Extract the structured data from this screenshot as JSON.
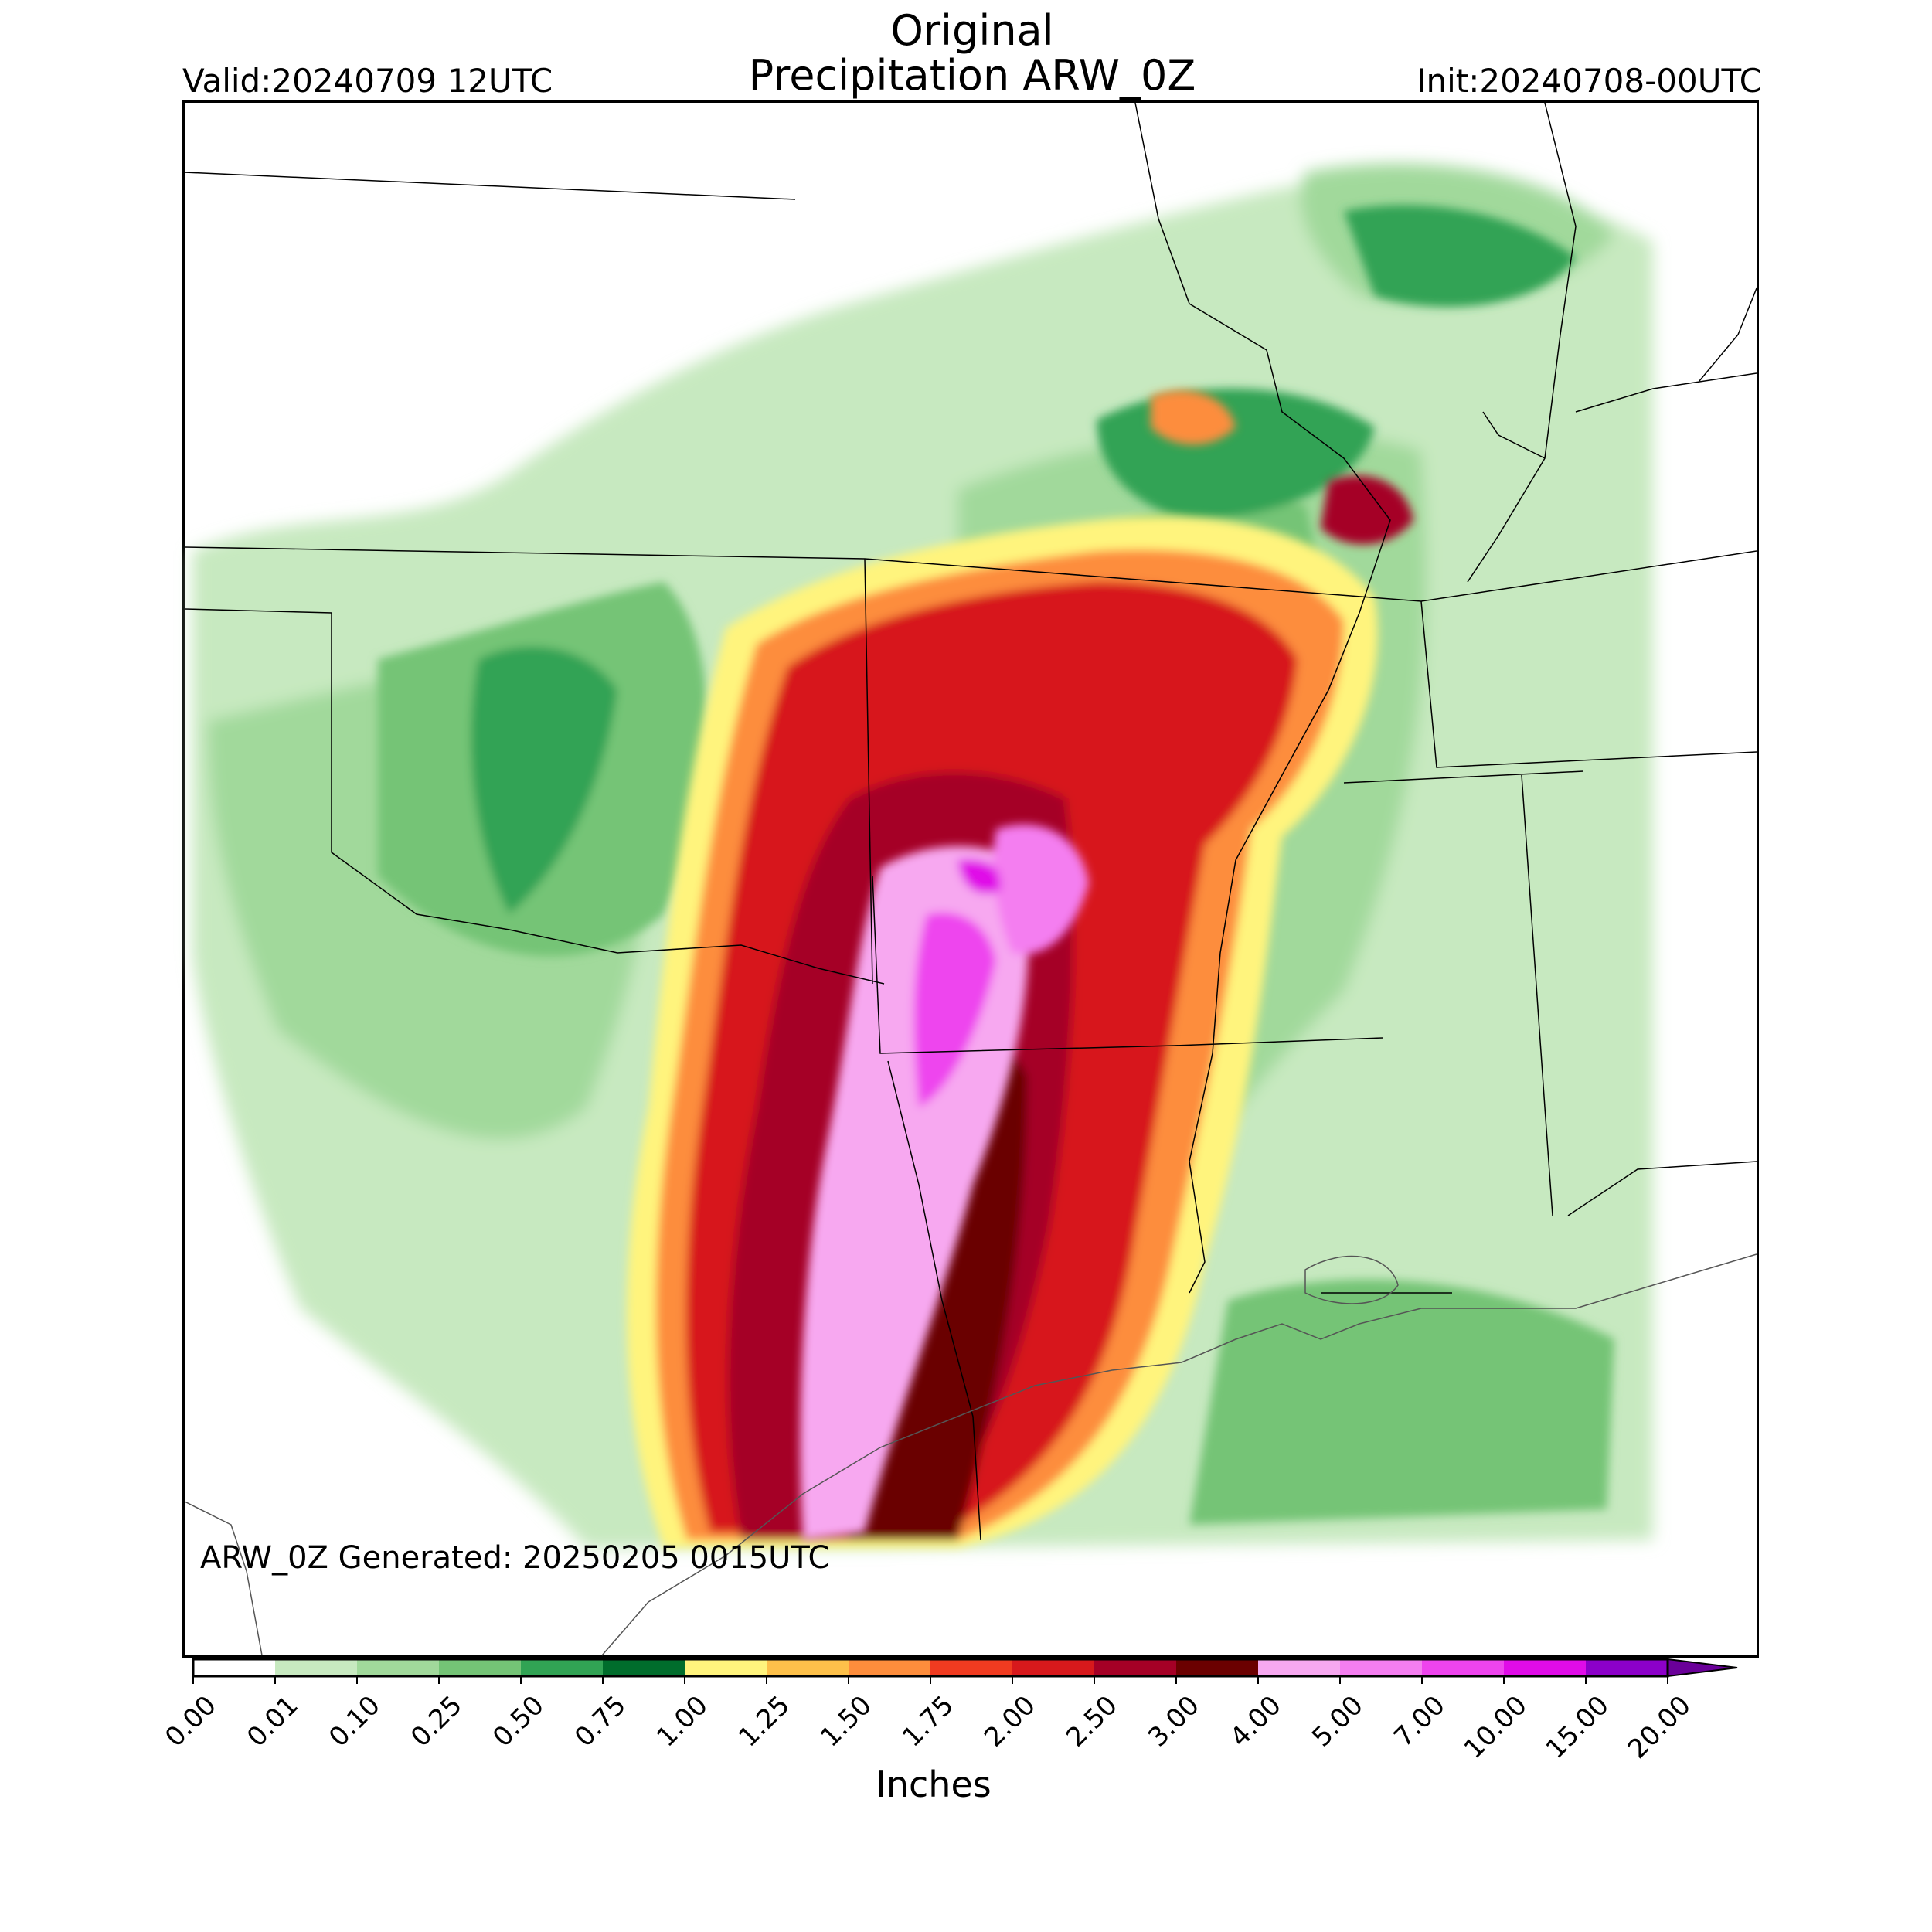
{
  "header": {
    "title_line1": "Original",
    "title_line2": "Precipitation ARW_0Z",
    "valid": "Valid:20240709 12UTC",
    "init": "Init:20240708-00UTC"
  },
  "map": {
    "generated": "ARW_0Z Generated: 20250205 0015UTC",
    "background": "#ffffff",
    "border_color": "#000000"
  },
  "colorbar": {
    "label": "Inches",
    "ticks": [
      "0.00",
      "0.01",
      "0.10",
      "0.25",
      "0.50",
      "0.75",
      "1.00",
      "1.25",
      "1.50",
      "1.75",
      "2.00",
      "2.50",
      "3.00",
      "4.00",
      "5.00",
      "7.00",
      "10.00",
      "15.00",
      "20.00"
    ],
    "colors": [
      "#ffffff",
      "#c7e9c0",
      "#a1d99b",
      "#74c476",
      "#31a354",
      "#006d2c",
      "#fff47d",
      "#fdc04a",
      "#fd8d3c",
      "#f03b20",
      "#d7191c",
      "#a50026",
      "#6b0000",
      "#f7a8f0",
      "#f47ef0",
      "#ee44ee",
      "#e00ce8",
      "#8c00c9"
    ]
  }
}
